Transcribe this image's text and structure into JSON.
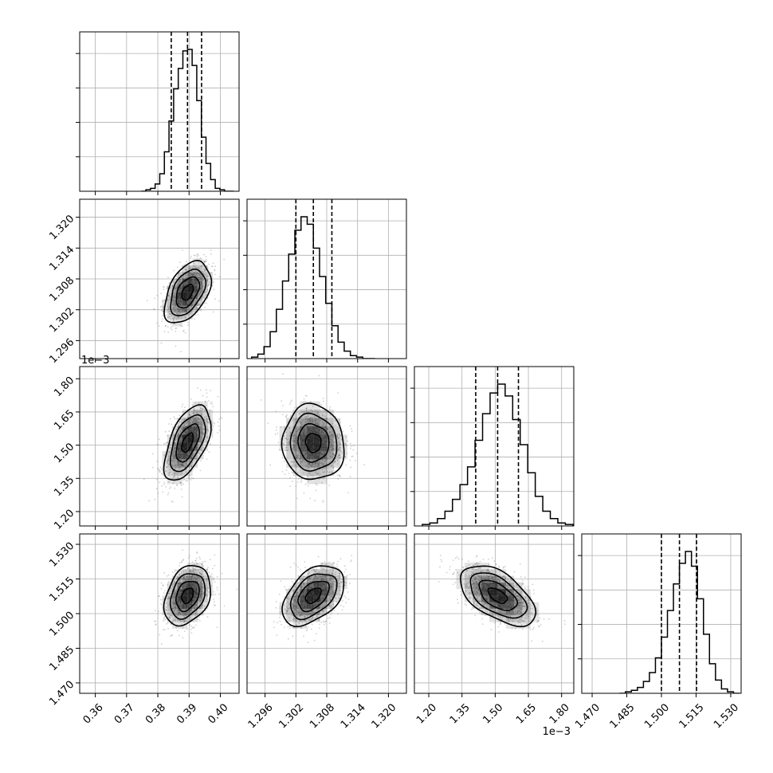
{
  "chart_data": {
    "type": "corner",
    "parameters": [
      {
        "xlim": [
          0.355,
          0.406
        ],
        "ticks": [
          0.36,
          0.37,
          0.38,
          0.39,
          0.4
        ],
        "tick_labels": [
          "0.36",
          "0.37",
          "0.38",
          "0.39",
          "0.40"
        ],
        "quantiles": [
          0.3843,
          0.3895,
          0.394
        ],
        "center": 0.3895,
        "sd": 0.0037,
        "offset_text": ""
      },
      {
        "xlim": [
          1.2925,
          1.3235
        ],
        "ticks": [
          1.296,
          1.302,
          1.308,
          1.314,
          1.32
        ],
        "tick_labels": [
          "1.296",
          "1.302",
          "1.308",
          "1.314",
          "1.320"
        ],
        "quantiles": [
          1.302,
          1.3054,
          1.309
        ],
        "center": 1.3054,
        "sd": 0.003,
        "offset_text": ""
      },
      {
        "xlim": [
          1.135,
          1.855
        ],
        "ticks": [
          1.2,
          1.35,
          1.5,
          1.65,
          1.8
        ],
        "tick_labels": [
          "1.20",
          "1.35",
          "1.50",
          "1.65",
          "1.80"
        ],
        "quantiles": [
          1.412,
          1.511,
          1.605
        ],
        "center": 1.511,
        "sd": 0.085,
        "offset_text": "1e−3"
      },
      {
        "xlim": [
          1.4655,
          1.5345
        ],
        "ticks": [
          1.47,
          1.485,
          1.5,
          1.515,
          1.53
        ],
        "tick_labels": [
          "1.470",
          "1.485",
          "1.500",
          "1.515",
          "1.530"
        ],
        "quantiles": [
          1.5,
          1.5078,
          1.5152
        ],
        "center": 1.5078,
        "sd": 0.0065,
        "offset_text": ""
      }
    ],
    "histograms": [
      {
        "edges_count": 20,
        "counts": [
          0,
          1,
          2,
          5,
          12,
          27,
          48,
          70,
          84,
          96,
          97,
          86,
          62,
          37,
          19,
          8,
          2,
          1,
          0,
          0
        ],
        "density_ticks": 4
      },
      {
        "edges_count": 20,
        "counts": [
          1,
          3,
          8,
          18,
          33,
          52,
          70,
          86,
          95,
          90,
          74,
          55,
          37,
          22,
          11,
          5,
          2,
          1,
          0,
          0
        ],
        "density_ticks": 4
      },
      {
        "edges_count": 20,
        "counts": [
          1,
          2,
          5,
          10,
          18,
          28,
          40,
          58,
          76,
          90,
          96,
          88,
          72,
          55,
          36,
          20,
          10,
          5,
          2,
          1
        ],
        "density_ticks": 4
      },
      {
        "edges_count": 20,
        "counts": [
          0,
          1,
          2,
          4,
          8,
          14,
          24,
          38,
          56,
          74,
          88,
          96,
          86,
          64,
          40,
          20,
          9,
          3,
          1,
          0
        ],
        "density_ticks": 4
      }
    ],
    "correlations": {
      "1-0": 0.45,
      "2-0": 0.55,
      "2-1": -0.05,
      "3-0": 0.3,
      "3-1": 0.45,
      "3-2": -0.55
    },
    "contour_levels_sigma": [
      0.5,
      1.0,
      1.5,
      2.0
    ],
    "grid": true,
    "colors": {
      "line": "#000000",
      "scatter": "#777777",
      "grid": "#b0b0b0",
      "density": "#000000"
    }
  }
}
